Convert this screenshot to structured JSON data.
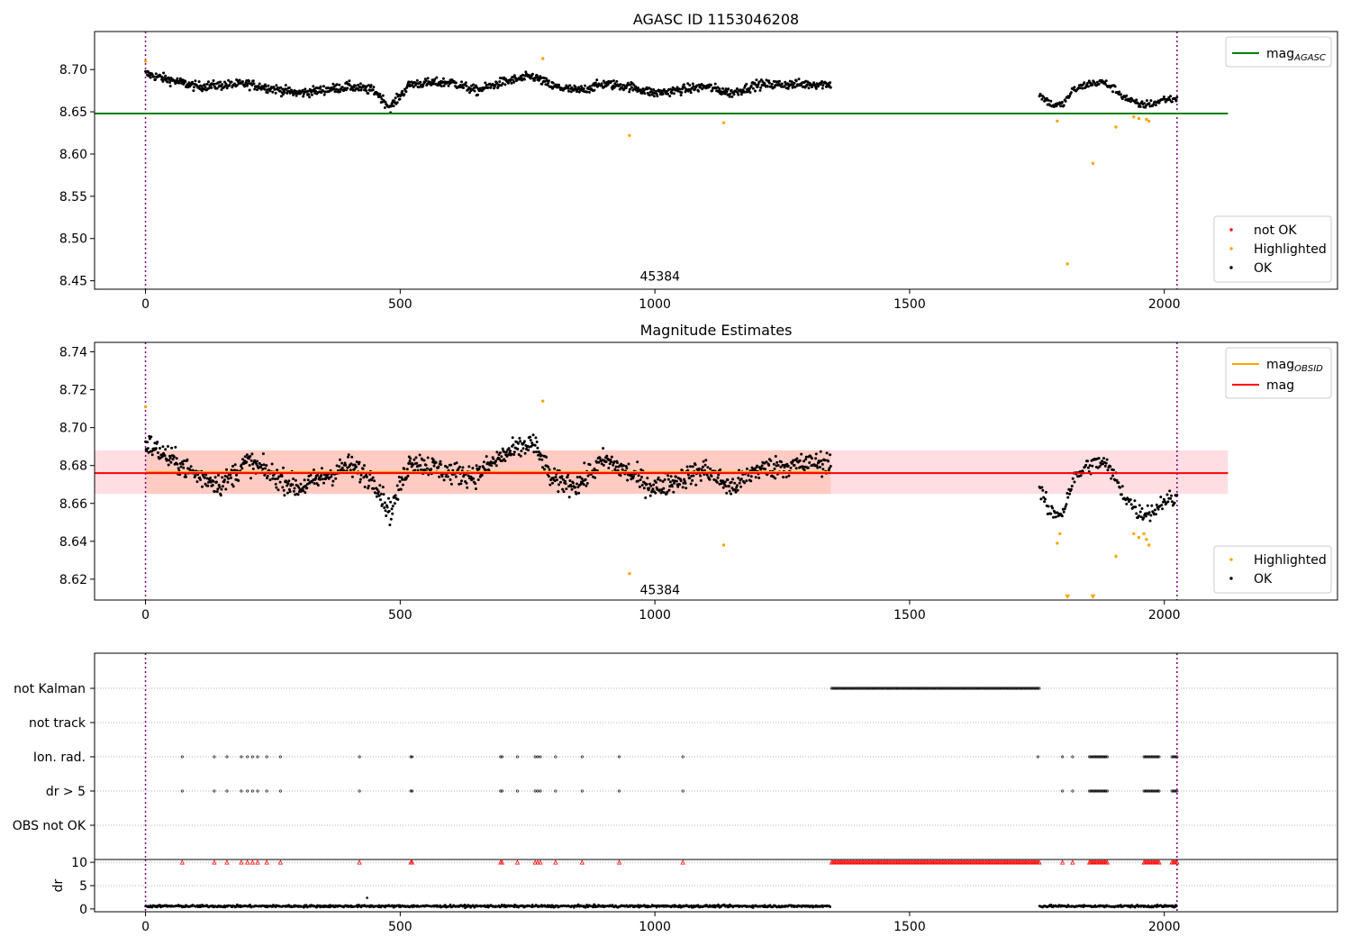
{
  "chart_data": [
    {
      "type": "scatter",
      "title": "AGASC ID 1153046208",
      "xlim": [
        -100,
        2340
      ],
      "ylim": [
        8.44,
        8.745
      ],
      "xticks": [
        0,
        500,
        1000,
        1500,
        2000
      ],
      "xtick_labels": [
        "0",
        "500",
        "1000",
        "1500",
        "2000"
      ],
      "yticks": [
        8.45,
        8.5,
        8.55,
        8.6,
        8.65,
        8.7
      ],
      "ytick_labels": [
        "8.45",
        "8.50",
        "8.55",
        "8.60",
        "8.65",
        "8.70"
      ],
      "grid": false,
      "vlines": [
        0,
        2025
      ],
      "hlines": [
        {
          "name": "mag_AGASC",
          "y": 8.648,
          "x": [
            -100,
            2125
          ],
          "color": "#008000"
        }
      ],
      "annotation": {
        "text": "45384",
        "x": 1010,
        "y": 8.452
      },
      "legend_top": {
        "position": "top-right",
        "entries": [
          {
            "label": "mag",
            "sub": "AGASC",
            "color": "#008000"
          }
        ]
      },
      "legend_bottom": {
        "position": "bottom-right",
        "entries": [
          {
            "label": "not OK",
            "color": "#ff0000"
          },
          {
            "label": "Highlighted",
            "color": "#ffa500"
          },
          {
            "label": "OK",
            "color": "#000000"
          }
        ]
      },
      "series": [
        {
          "name": "OK",
          "segments": [
            {
              "x0": 0,
              "x1": 1345,
              "n": 1100,
              "levels": [
                [
                  0,
                  8.695
                ],
                [
                  100,
                  8.68
                ],
                [
                  200,
                  8.683
                ],
                [
                  300,
                  8.672
                ],
                [
                  400,
                  8.68
                ],
                [
                  450,
                  8.675
                ],
                [
                  480,
                  8.655
                ],
                [
                  520,
                  8.683
                ],
                [
                  600,
                  8.685
                ],
                [
                  650,
                  8.675
                ],
                [
                  700,
                  8.685
                ],
                [
                  760,
                  8.692
                ],
                [
                  800,
                  8.68
                ],
                [
                  850,
                  8.675
                ],
                [
                  900,
                  8.683
                ],
                [
                  950,
                  8.68
                ],
                [
                  1000,
                  8.672
                ],
                [
                  1100,
                  8.68
                ],
                [
                  1150,
                  8.672
                ],
                [
                  1200,
                  8.682
                ],
                [
                  1345,
                  8.683
                ]
              ],
              "spread": 0.012
            },
            {
              "x0": 1755,
              "x1": 2025,
              "n": 170,
              "levels": [
                [
                  1755,
                  8.67
                ],
                [
                  1780,
                  8.658
                ],
                [
                  1800,
                  8.658
                ],
                [
                  1820,
                  8.675
                ],
                [
                  1850,
                  8.683
                ],
                [
                  1880,
                  8.685
                ],
                [
                  1900,
                  8.678
                ],
                [
                  1920,
                  8.668
                ],
                [
                  1950,
                  8.658
                ],
                [
                  1980,
                  8.66
                ],
                [
                  2000,
                  8.665
                ],
                [
                  2025,
                  8.665
                ]
              ],
              "spread": 0.01
            }
          ],
          "color": "#000000"
        },
        {
          "name": "Highlighted",
          "points": [
            [
              0,
              8.71
            ],
            [
              780,
              8.713
            ],
            [
              950,
              8.622
            ],
            [
              1135,
              8.637
            ],
            [
              1790,
              8.639
            ],
            [
              1810,
              8.47
            ],
            [
              1860,
              8.589
            ],
            [
              1905,
              8.632
            ],
            [
              1940,
              8.644
            ],
            [
              1950,
              8.642
            ],
            [
              1965,
              8.641
            ],
            [
              1970,
              8.639
            ]
          ],
          "color": "#ffa500"
        }
      ]
    },
    {
      "type": "scatter",
      "title": "Magnitude Estimates",
      "xlim": [
        -100,
        2340
      ],
      "ylim": [
        8.609,
        8.745
      ],
      "xticks": [
        0,
        500,
        1000,
        1500,
        2000
      ],
      "xtick_labels": [
        "0",
        "500",
        "1000",
        "1500",
        "2000"
      ],
      "yticks": [
        8.62,
        8.64,
        8.66,
        8.68,
        8.7,
        8.72,
        8.74
      ],
      "ytick_labels": [
        "8.62",
        "8.64",
        "8.66",
        "8.68",
        "8.70",
        "8.72",
        "8.74"
      ],
      "grid": false,
      "vlines": [
        0,
        2025
      ],
      "band": {
        "x": [
          -100,
          2125
        ],
        "y": [
          8.665,
          8.688
        ]
      },
      "hlines": [
        {
          "name": "mag_OBSID",
          "y": 8.6765,
          "x": [
            0,
            1345
          ],
          "color": "#ffa500"
        },
        {
          "name": "mag",
          "y": 8.676,
          "x": [
            -100,
            2125
          ],
          "color": "#ff0000"
        }
      ],
      "annotation": {
        "text": "45384",
        "x": 1010,
        "y": 8.613
      },
      "legend_top": {
        "position": "top-right",
        "entries": [
          {
            "label": "mag",
            "sub": "OBSID",
            "color": "#ffa500"
          },
          {
            "label": "mag",
            "sub": "",
            "color": "#ff0000"
          }
        ]
      },
      "legend_bottom": {
        "position": "bottom-right",
        "entries": [
          {
            "label": "Highlighted",
            "color": "#ffa500"
          },
          {
            "label": "OK",
            "color": "#000000"
          }
        ]
      },
      "series": [
        {
          "name": "OK",
          "segments": [
            {
              "x0": 0,
              "x1": 1345,
              "n": 1100,
              "levels": [
                [
                  0,
                  8.692
                ],
                [
                  100,
                  8.675
                ],
                [
                  150,
                  8.67
                ],
                [
                  200,
                  8.682
                ],
                [
                  300,
                  8.668
                ],
                [
                  400,
                  8.68
                ],
                [
                  450,
                  8.672
                ],
                [
                  480,
                  8.655
                ],
                [
                  520,
                  8.683
                ],
                [
                  600,
                  8.676
                ],
                [
                  650,
                  8.675
                ],
                [
                  700,
                  8.685
                ],
                [
                  760,
                  8.692
                ],
                [
                  800,
                  8.672
                ],
                [
                  850,
                  8.67
                ],
                [
                  900,
                  8.683
                ],
                [
                  950,
                  8.676
                ],
                [
                  1000,
                  8.668
                ],
                [
                  1100,
                  8.678
                ],
                [
                  1150,
                  8.668
                ],
                [
                  1200,
                  8.678
                ],
                [
                  1345,
                  8.682
                ]
              ],
              "spread": 0.013
            },
            {
              "x0": 1755,
              "x1": 2025,
              "n": 170,
              "levels": [
                [
                  1755,
                  8.668
                ],
                [
                  1775,
                  8.655
                ],
                [
                  1800,
                  8.655
                ],
                [
                  1820,
                  8.672
                ],
                [
                  1850,
                  8.68
                ],
                [
                  1880,
                  8.682
                ],
                [
                  1900,
                  8.675
                ],
                [
                  1920,
                  8.665
                ],
                [
                  1950,
                  8.655
                ],
                [
                  1980,
                  8.656
                ],
                [
                  2000,
                  8.662
                ],
                [
                  2025,
                  8.662
                ]
              ],
              "spread": 0.01
            }
          ],
          "color": "#000000"
        },
        {
          "name": "Highlighted",
          "points": [
            [
              0,
              8.711
            ],
            [
              780,
              8.714
            ],
            [
              950,
              8.623
            ],
            [
              1135,
              8.638
            ],
            [
              1790,
              8.639
            ],
            [
              1795,
              8.644
            ],
            [
              1905,
              8.632
            ],
            [
              1940,
              8.644
            ],
            [
              1950,
              8.642
            ],
            [
              1960,
              8.644
            ],
            [
              1965,
              8.641
            ],
            [
              1970,
              8.638
            ]
          ],
          "color": "#ffa500"
        },
        {
          "name": "Highlighted (clipped)",
          "points": [
            [
              1810,
              8.61
            ],
            [
              1860,
              8.61
            ]
          ],
          "color": "#ffa500",
          "marker": "triangle-down"
        }
      ]
    },
    {
      "type": "scatter",
      "title": "",
      "xlim": [
        -100,
        2340
      ],
      "categories": [
        "not Kalman",
        "not track",
        "Ion. rad.",
        "dr > 5",
        "OBS not OK"
      ],
      "grid": "horizontal-dotted",
      "vlines": [
        0,
        2025
      ],
      "flags": {
        "not Kalman": [
          [
            1347,
            1755
          ]
        ],
        "not track": [],
        "Ion. rad.": [
          72,
          135,
          160,
          188,
          200,
          210,
          220,
          238,
          265,
          420,
          521,
          523,
          697,
          700,
          730,
          765,
          770,
          775,
          805,
          857,
          930,
          1055,
          1752,
          1800,
          1820,
          [
            1853,
            1890
          ],
          [
            1960,
            1990
          ],
          [
            2015,
            2025
          ]
        ],
        "dr > 5": [
          72,
          135,
          160,
          188,
          200,
          210,
          220,
          238,
          265,
          420,
          521,
          523,
          697,
          700,
          730,
          765,
          770,
          775,
          805,
          857,
          930,
          1055,
          1800,
          1820,
          [
            1853,
            1890
          ],
          [
            1960,
            1990
          ],
          [
            2015,
            2025
          ]
        ],
        "OBS not OK": []
      },
      "flag_color": "#000000"
    },
    {
      "type": "scatter",
      "title": "",
      "xlim": [
        -100,
        2340
      ],
      "ylim": [
        -0.6,
        10.6
      ],
      "yticks": [
        0,
        5,
        10
      ],
      "ytick_labels": [
        "0",
        "5",
        "10"
      ],
      "xticks": [
        0,
        500,
        1000,
        1500,
        2000
      ],
      "xtick_labels": [
        "0",
        "500",
        "1000",
        "1500",
        "2000"
      ],
      "ylabel": "dr",
      "grid": "horizontal-dotted",
      "vlines": [
        0,
        2025
      ],
      "dr_segments": [
        [
          0,
          1345
        ],
        [
          1755,
          2025
        ]
      ],
      "dr_level": 0.6,
      "dr_spread": 0.25,
      "dr_outliers": [
        [
          435,
          2.4
        ]
      ],
      "capped_value": 10,
      "capped_x": [
        72,
        135,
        160,
        188,
        200,
        210,
        220,
        238,
        265,
        420,
        521,
        523,
        697,
        700,
        730,
        765,
        770,
        775,
        805,
        857,
        930,
        1055,
        [
          1347,
          1755
        ],
        1800,
        1820,
        [
          1853,
          1890
        ],
        [
          1960,
          1990
        ],
        [
          2015,
          2025
        ]
      ],
      "colors": {
        "dr": "#000000",
        "capped": "#ff0000"
      }
    }
  ]
}
